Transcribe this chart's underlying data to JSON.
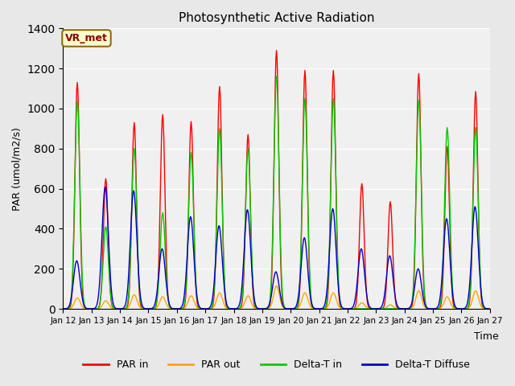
{
  "title": "Photosynthetic Active Radiation",
  "ylabel": "PAR (umol/m2/s)",
  "xlabel": "Time",
  "annotation": "VR_met",
  "ylim": [
    0,
    1400
  ],
  "background_color": "#e8e8e8",
  "plot_bg_color": "#f0f0f0",
  "colors": {
    "par_in": "#ff0000",
    "par_out": "#ffa500",
    "delta_t_in": "#00cc00",
    "delta_t_diffuse": "#0000cc"
  },
  "legend": [
    "PAR in",
    "PAR out",
    "Delta-T in",
    "Delta-T Diffuse"
  ],
  "xtick_labels": [
    "Jan 12",
    "Jan 13",
    "Jan 14",
    "Jan 15",
    "Jan 16",
    "Jan 17",
    "Jan 18",
    "Jan 19",
    "Jan 20",
    "Jan 21",
    "Jan 22",
    "Jan 23",
    "Jan 24",
    "Jan 25",
    "Jan 26",
    "Jan 27"
  ],
  "n_days": 15,
  "points_per_day": 48,
  "day_peaks": {
    "par_in": [
      1130,
      650,
      930,
      970,
      935,
      1110,
      870,
      1290,
      1190,
      1190,
      625,
      535,
      1175,
      810,
      1085
    ],
    "par_out": [
      55,
      40,
      70,
      60,
      65,
      80,
      65,
      115,
      80,
      80,
      30,
      20,
      90,
      60,
      90
    ],
    "delta_t_in": [
      1040,
      410,
      800,
      480,
      780,
      900,
      800,
      1160,
      1050,
      1050,
      0,
      0,
      1040,
      905,
      905
    ],
    "delta_t_diffuse": [
      240,
      610,
      590,
      300,
      460,
      415,
      495,
      185,
      355,
      500,
      300,
      265,
      200,
      450,
      510
    ]
  }
}
